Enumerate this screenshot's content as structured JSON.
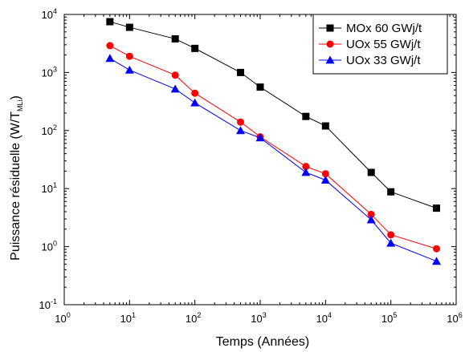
{
  "chart_data": {
    "type": "line",
    "title": "",
    "xlabel": "Temps (Années)",
    "ylabel": {
      "main": "Puissance résiduelle (W/T",
      "sub": "MLi",
      "end": ")"
    },
    "x_scale": "log",
    "y_scale": "log",
    "xlim": [
      1,
      1000000
    ],
    "ylim": [
      0.1,
      10000
    ],
    "grid": false,
    "legend_position": "top-right",
    "x_ticks": [
      {
        "base": "10",
        "exp": "0"
      },
      {
        "base": "10",
        "exp": "1"
      },
      {
        "base": "10",
        "exp": "2"
      },
      {
        "base": "10",
        "exp": "3"
      },
      {
        "base": "10",
        "exp": "4"
      },
      {
        "base": "10",
        "exp": "5"
      },
      {
        "base": "10",
        "exp": "6"
      }
    ],
    "y_ticks": [
      {
        "base": "10",
        "exp": "-1"
      },
      {
        "base": "10",
        "exp": "0"
      },
      {
        "base": "10",
        "exp": "1"
      },
      {
        "base": "10",
        "exp": "2"
      },
      {
        "base": "10",
        "exp": "3"
      },
      {
        "base": "10",
        "exp": "4"
      }
    ],
    "series": [
      {
        "name": "MOx 60 GWj/t",
        "color": "#000000",
        "marker": "square",
        "x": [
          5,
          10,
          50,
          100,
          500,
          1000,
          5000,
          10000,
          50000,
          100000,
          500000
        ],
        "y": [
          7500,
          6000,
          3800,
          2600,
          1000,
          560,
          175,
          120,
          19,
          8.8,
          4.6
        ]
      },
      {
        "name": "UOx 55 GWj/t",
        "color": "#ff0000",
        "marker": "circle",
        "x": [
          5,
          10,
          50,
          100,
          500,
          1000,
          5000,
          10000,
          50000,
          100000,
          500000
        ],
        "y": [
          2900,
          1900,
          900,
          440,
          140,
          78,
          24,
          18,
          3.6,
          1.6,
          0.92
        ]
      },
      {
        "name": "UOx 33 GWj/t",
        "color": "#0000ff",
        "marker": "triangle",
        "x": [
          5,
          10,
          50,
          100,
          500,
          1000,
          5000,
          10000,
          50000,
          100000,
          500000
        ],
        "y": [
          1750,
          1100,
          520,
          300,
          100,
          75,
          19,
          14,
          2.9,
          1.15,
          0.56
        ]
      }
    ]
  }
}
